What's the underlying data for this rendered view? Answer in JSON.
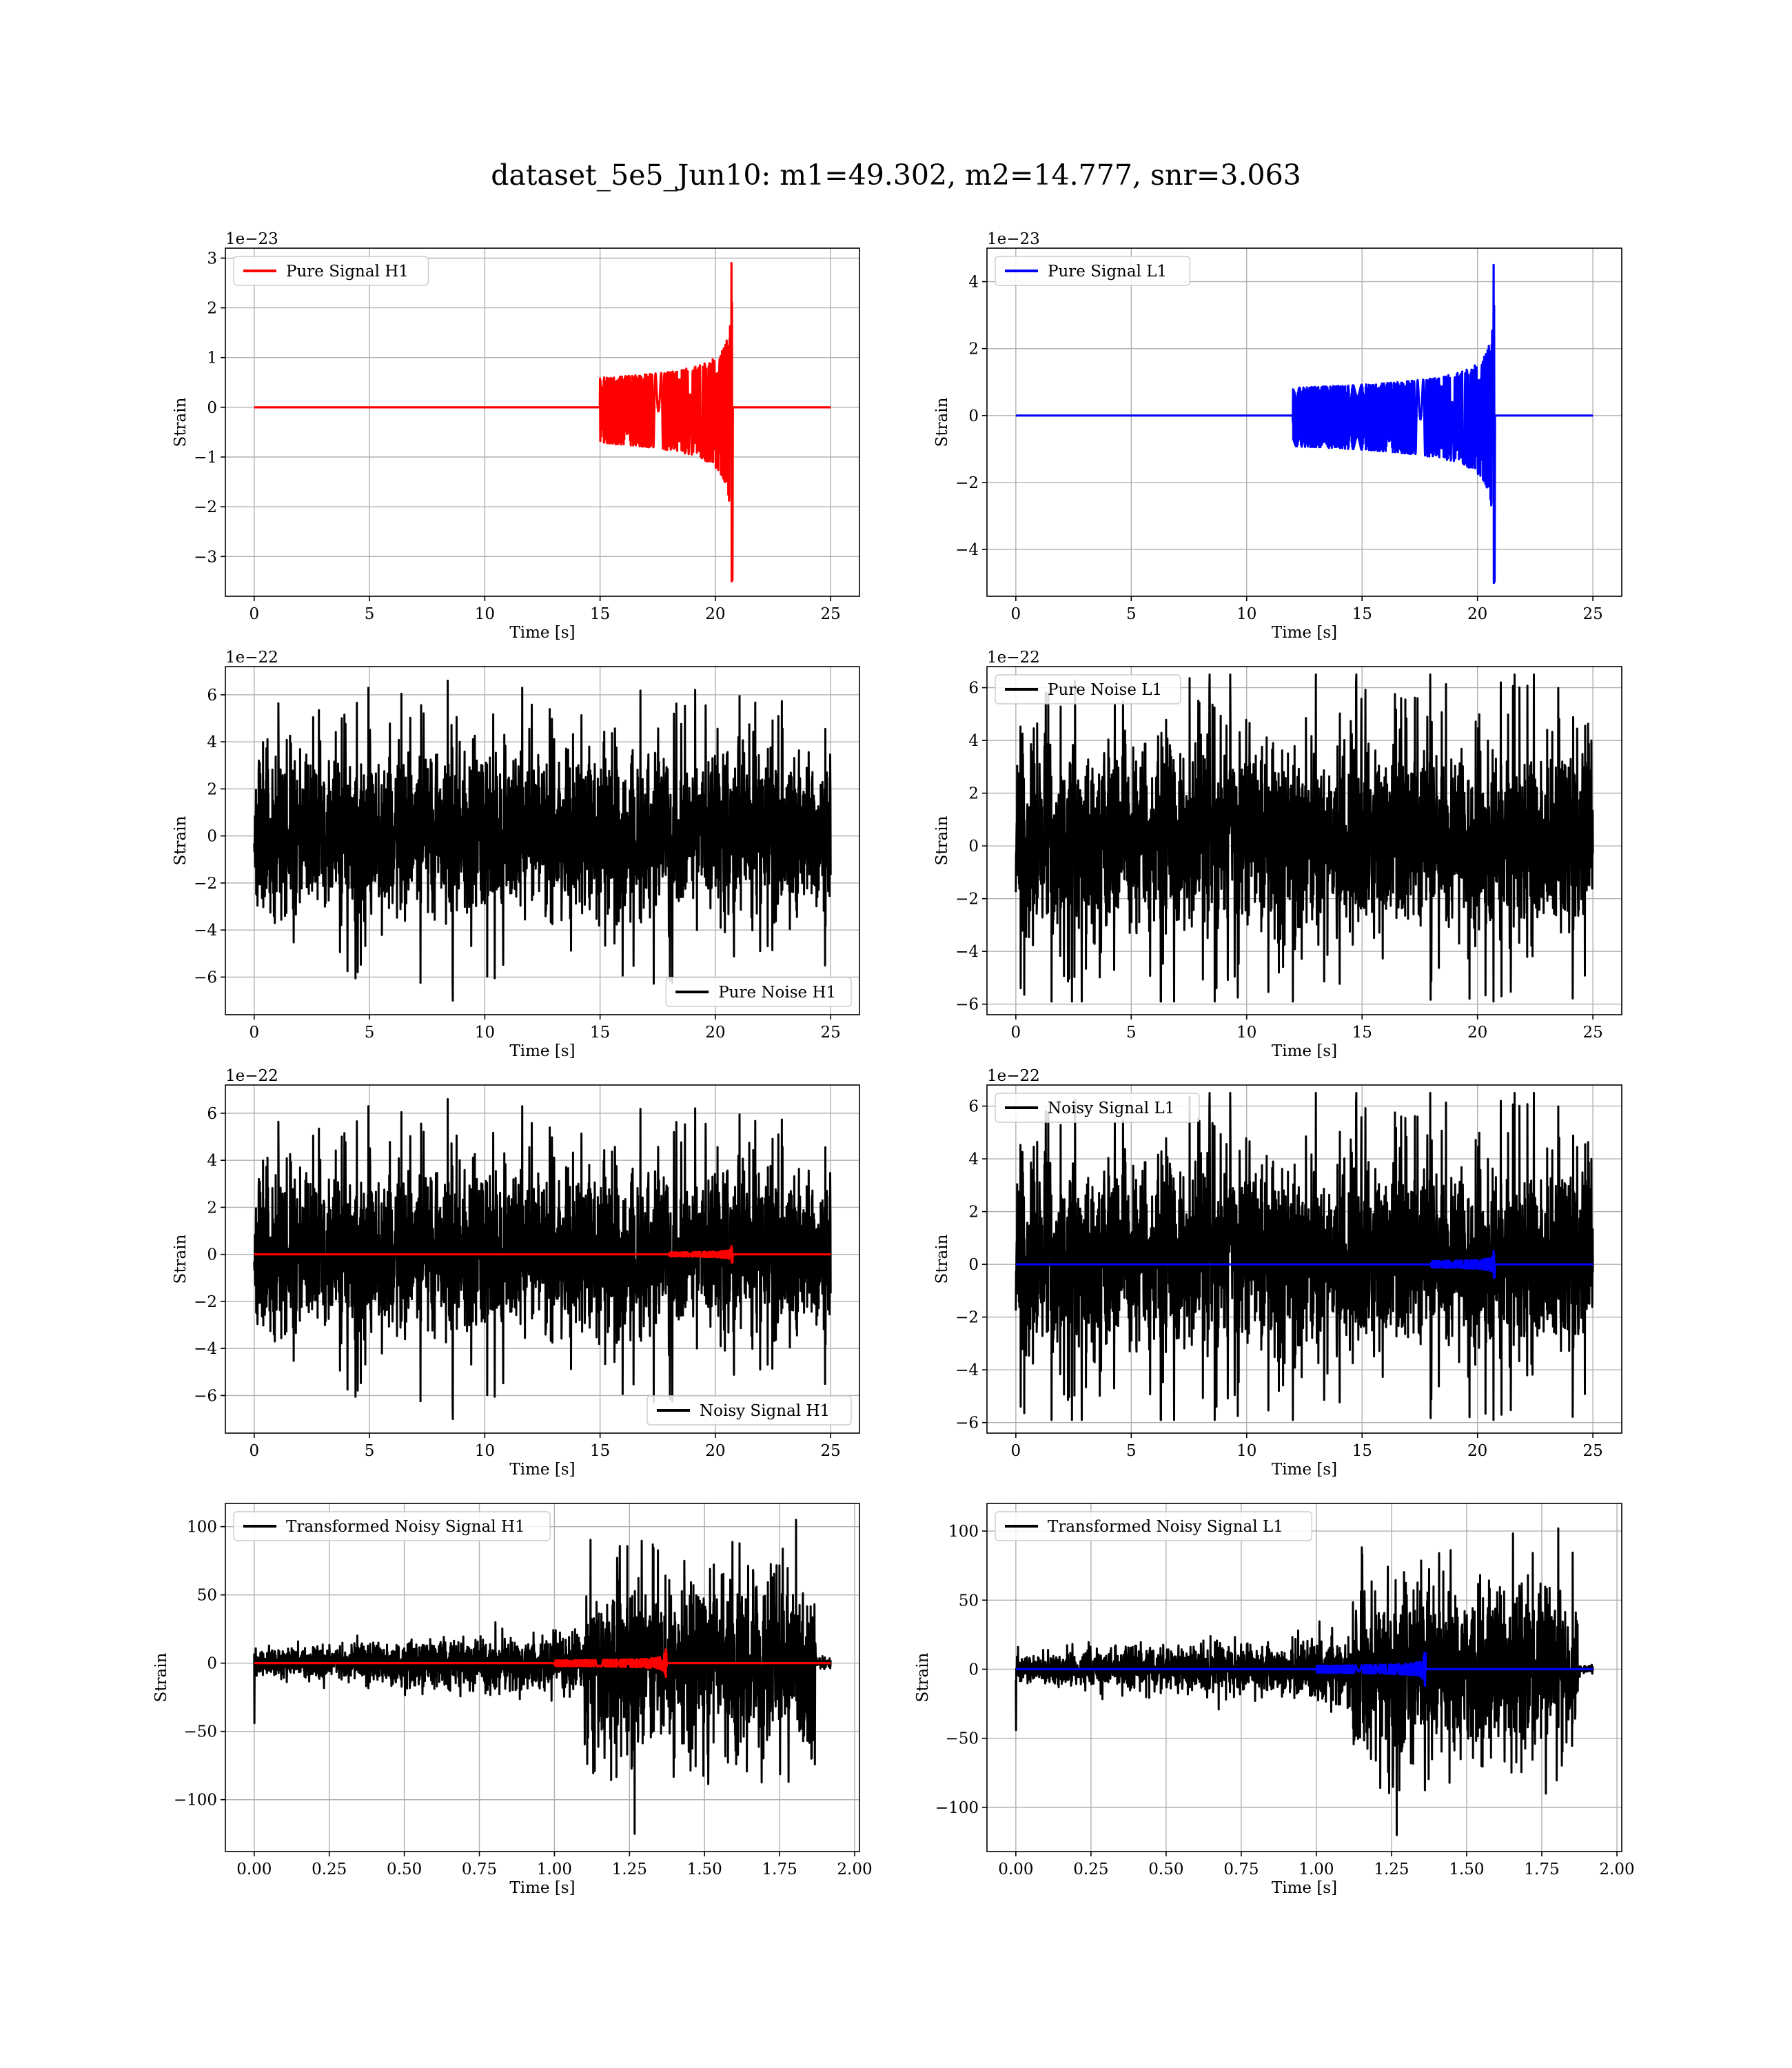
{
  "figure": {
    "title": "dataset_5e5_Jun10: m1=49.302, m2=14.777, snr=3.063"
  },
  "chart_data": [
    {
      "type": "line",
      "id": "pure-signal-h1",
      "title": "",
      "xlabel": "Time [s]",
      "ylabel": "Strain",
      "offset_text": "1e−23",
      "xlim": [
        -1.25,
        26.25
      ],
      "ylim": [
        -3.8,
        3.2
      ],
      "xticks": [
        0,
        5,
        10,
        15,
        20,
        25
      ],
      "xtick_labels": [
        "0",
        "5",
        "10",
        "15",
        "20",
        "25"
      ],
      "yticks": [
        -3,
        -2,
        -1,
        0,
        1,
        2,
        3
      ],
      "ytick_labels": [
        "−3",
        "−2",
        "−1",
        "0",
        "1",
        "2",
        "3"
      ],
      "grid": true,
      "legend": {
        "position": "upper left"
      },
      "series": [
        {
          "name": "Pure Signal H1",
          "color": "#ff0000",
          "kind": "chirp",
          "x_range": [
            0,
            25
          ],
          "merger_time": 20.7,
          "peak_pos": 2.9,
          "peak_neg": -3.5,
          "onset": 15
        }
      ]
    },
    {
      "type": "line",
      "id": "pure-signal-l1",
      "title": "",
      "xlabel": "Time [s]",
      "ylabel": "Strain",
      "offset_text": "1e−23",
      "xlim": [
        -1.25,
        26.25
      ],
      "ylim": [
        -5.4,
        5.0
      ],
      "xticks": [
        0,
        5,
        10,
        15,
        20,
        25
      ],
      "xtick_labels": [
        "0",
        "5",
        "10",
        "15",
        "20",
        "25"
      ],
      "yticks": [
        -4,
        -2,
        0,
        2,
        4
      ],
      "ytick_labels": [
        "−4",
        "−2",
        "0",
        "2",
        "4"
      ],
      "grid": true,
      "legend": {
        "position": "upper left"
      },
      "series": [
        {
          "name": "Pure Signal L1",
          "color": "#0000ff",
          "kind": "chirp",
          "x_range": [
            0,
            25
          ],
          "merger_time": 20.7,
          "peak_pos": 4.5,
          "peak_neg": -5.0,
          "onset": 12
        }
      ]
    },
    {
      "type": "line",
      "id": "pure-noise-h1",
      "title": "",
      "xlabel": "Time [s]",
      "ylabel": "Strain",
      "offset_text": "1e−22",
      "xlim": [
        -1.25,
        26.25
      ],
      "ylim": [
        -7.6,
        7.2
      ],
      "xticks": [
        0,
        5,
        10,
        15,
        20,
        25
      ],
      "xtick_labels": [
        "0",
        "5",
        "10",
        "15",
        "20",
        "25"
      ],
      "yticks": [
        -6,
        -4,
        -2,
        0,
        2,
        4,
        6
      ],
      "ytick_labels": [
        "−6",
        "−4",
        "−2",
        "0",
        "2",
        "4",
        "6"
      ],
      "grid": true,
      "legend": {
        "position": "lower right"
      },
      "series": [
        {
          "name": "Pure Noise H1",
          "color": "#000000",
          "kind": "noise",
          "x_range": [
            0,
            25
          ],
          "band": [
            -3.8,
            4.1
          ],
          "max": 6.6,
          "min": -7.0,
          "seed": 11
        }
      ]
    },
    {
      "type": "line",
      "id": "pure-noise-l1",
      "title": "",
      "xlabel": "Time [s]",
      "ylabel": "Strain",
      "offset_text": "1e−22",
      "xlim": [
        -1.25,
        26.25
      ],
      "ylim": [
        -6.4,
        6.8
      ],
      "xticks": [
        0,
        5,
        10,
        15,
        20,
        25
      ],
      "xtick_labels": [
        "0",
        "5",
        "10",
        "15",
        "20",
        "25"
      ],
      "yticks": [
        -6,
        -4,
        -2,
        0,
        2,
        4,
        6
      ],
      "ytick_labels": [
        "−6",
        "−4",
        "−2",
        "0",
        "2",
        "4",
        "6"
      ],
      "grid": true,
      "legend": {
        "position": "upper left"
      },
      "series": [
        {
          "name": "Pure Noise L1",
          "color": "#000000",
          "kind": "noise",
          "x_range": [
            0,
            25
          ],
          "band": [
            -4.0,
            4.4
          ],
          "max": 6.5,
          "min": -5.9,
          "seed": 23
        }
      ]
    },
    {
      "type": "line",
      "id": "noisy-signal-h1",
      "title": "",
      "xlabel": "Time [s]",
      "ylabel": "Strain",
      "offset_text": "1e−22",
      "xlim": [
        -1.25,
        26.25
      ],
      "ylim": [
        -7.6,
        7.2
      ],
      "xticks": [
        0,
        5,
        10,
        15,
        20,
        25
      ],
      "xtick_labels": [
        "0",
        "5",
        "10",
        "15",
        "20",
        "25"
      ],
      "yticks": [
        -6,
        -4,
        -2,
        0,
        2,
        4,
        6
      ],
      "ytick_labels": [
        "−6",
        "−4",
        "−2",
        "0",
        "2",
        "4",
        "6"
      ],
      "grid": true,
      "legend": {
        "position": "lower right"
      },
      "series": [
        {
          "name": "Noisy Signal H1",
          "color": "#000000",
          "kind": "noise",
          "x_range": [
            0,
            25
          ],
          "band": [
            -3.8,
            4.1
          ],
          "max": 6.6,
          "min": -7.0,
          "seed": 11
        },
        {
          "name": "",
          "color": "#ff0000",
          "kind": "chirp",
          "x_range": [
            0,
            25
          ],
          "merger_time": 20.7,
          "peak_pos": 0.35,
          "peak_neg": -0.35,
          "onset": 18
        }
      ]
    },
    {
      "type": "line",
      "id": "noisy-signal-l1",
      "title": "",
      "xlabel": "Time [s]",
      "ylabel": "Strain",
      "offset_text": "1e−22",
      "xlim": [
        -1.25,
        26.25
      ],
      "ylim": [
        -6.4,
        6.8
      ],
      "xticks": [
        0,
        5,
        10,
        15,
        20,
        25
      ],
      "xtick_labels": [
        "0",
        "5",
        "10",
        "15",
        "20",
        "25"
      ],
      "yticks": [
        -6,
        -4,
        -2,
        0,
        2,
        4,
        6
      ],
      "ytick_labels": [
        "−6",
        "−4",
        "−2",
        "0",
        "2",
        "4",
        "6"
      ],
      "grid": true,
      "legend": {
        "position": "upper left"
      },
      "series": [
        {
          "name": "Noisy Signal L1",
          "color": "#000000",
          "kind": "noise",
          "x_range": [
            0,
            25
          ],
          "band": [
            -4.0,
            4.4
          ],
          "max": 6.5,
          "min": -5.9,
          "seed": 23
        },
        {
          "name": "",
          "color": "#0000ff",
          "kind": "chirp",
          "x_range": [
            0,
            25
          ],
          "merger_time": 20.7,
          "peak_pos": 0.5,
          "peak_neg": -0.5,
          "onset": 18
        }
      ]
    },
    {
      "type": "line",
      "id": "transformed-h1",
      "title": "",
      "xlabel": "Time [s]",
      "ylabel": "Strain",
      "offset_text": "",
      "xlim": [
        -0.096,
        2.016
      ],
      "ylim": [
        -138,
        117
      ],
      "xticks": [
        0.0,
        0.25,
        0.5,
        0.75,
        1.0,
        1.25,
        1.5,
        1.75,
        2.0
      ],
      "xtick_labels": [
        "0.00",
        "0.25",
        "0.50",
        "0.75",
        "1.00",
        "1.25",
        "1.50",
        "1.75",
        "2.00"
      ],
      "yticks": [
        -100,
        -50,
        0,
        50,
        100
      ],
      "ytick_labels": [
        "−100",
        "−50",
        "0",
        "50",
        "100"
      ],
      "grid": true,
      "legend": {
        "position": "upper left"
      },
      "series": [
        {
          "name": "Transformed Noisy Signal H1",
          "color": "#000000",
          "kind": "transformed",
          "x_range": [
            0,
            1.92
          ],
          "jump_time": 1.1,
          "low_amp": 10,
          "high_amp": 50,
          "max": 105,
          "min": -125,
          "end_time": 1.87,
          "seed": 31
        },
        {
          "name": "",
          "color": "#ff0000",
          "kind": "chirp",
          "x_range": [
            0,
            1.92
          ],
          "merger_time": 1.37,
          "peak_pos": 10,
          "peak_neg": -10,
          "onset": 1.0
        }
      ]
    },
    {
      "type": "line",
      "id": "transformed-l1",
      "title": "",
      "xlabel": "Time [s]",
      "ylabel": "Strain",
      "offset_text": "",
      "xlim": [
        -0.096,
        2.016
      ],
      "ylim": [
        -132,
        120
      ],
      "xticks": [
        0.0,
        0.25,
        0.5,
        0.75,
        1.0,
        1.25,
        1.5,
        1.75,
        2.0
      ],
      "xtick_labels": [
        "0.00",
        "0.25",
        "0.50",
        "0.75",
        "1.00",
        "1.25",
        "1.50",
        "1.75",
        "2.00"
      ],
      "yticks": [
        -100,
        -50,
        0,
        50,
        100
      ],
      "ytick_labels": [
        "−100",
        "−50",
        "0",
        "50",
        "100"
      ],
      "grid": true,
      "legend": {
        "position": "upper left"
      },
      "series": [
        {
          "name": "Transformed Noisy Signal L1",
          "color": "#000000",
          "kind": "transformed",
          "x_range": [
            0,
            1.92
          ],
          "jump_time": 1.12,
          "low_amp": 10,
          "high_amp": 50,
          "max": 102,
          "min": -120,
          "end_time": 1.87,
          "seed": 47
        },
        {
          "name": "",
          "color": "#0000ff",
          "kind": "chirp",
          "x_range": [
            0,
            1.92
          ],
          "merger_time": 1.36,
          "peak_pos": 12,
          "peak_neg": -12,
          "onset": 1.0
        }
      ]
    }
  ]
}
